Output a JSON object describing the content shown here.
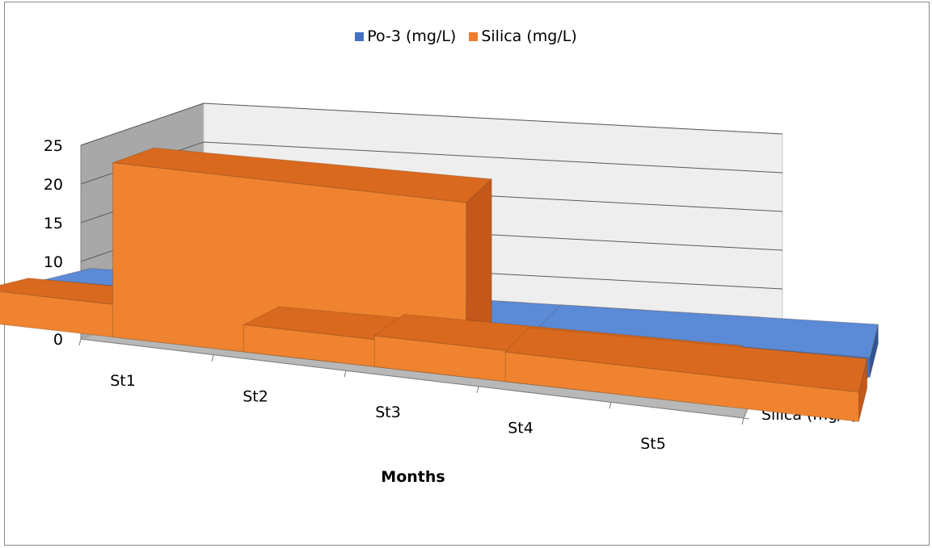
{
  "chart_data": {
    "type": "bar",
    "subtype": "3d-column",
    "categories": [
      "St1",
      "St2",
      "St3",
      "St4",
      "St5"
    ],
    "series": [
      {
        "name": "Po-3 (mg/L)",
        "values": [
          3.5,
          2.5,
          2.5,
          2.5,
          2.5
        ],
        "color": "#4472C4"
      },
      {
        "name": "Silica (mg/L)",
        "values": [
          4.2,
          22.5,
          3.5,
          4.0,
          3.8
        ],
        "color": "#ED7D31"
      }
    ],
    "depth_labels": [
      "Po-3 (mg/L)",
      "Silica (mg/L)"
    ],
    "xlabel": "Months",
    "ylabel": "",
    "ylim": [
      0,
      25
    ],
    "yticks": [
      "0",
      "5",
      "10",
      "15",
      "20",
      "25"
    ],
    "grid": true,
    "legend": "top"
  }
}
